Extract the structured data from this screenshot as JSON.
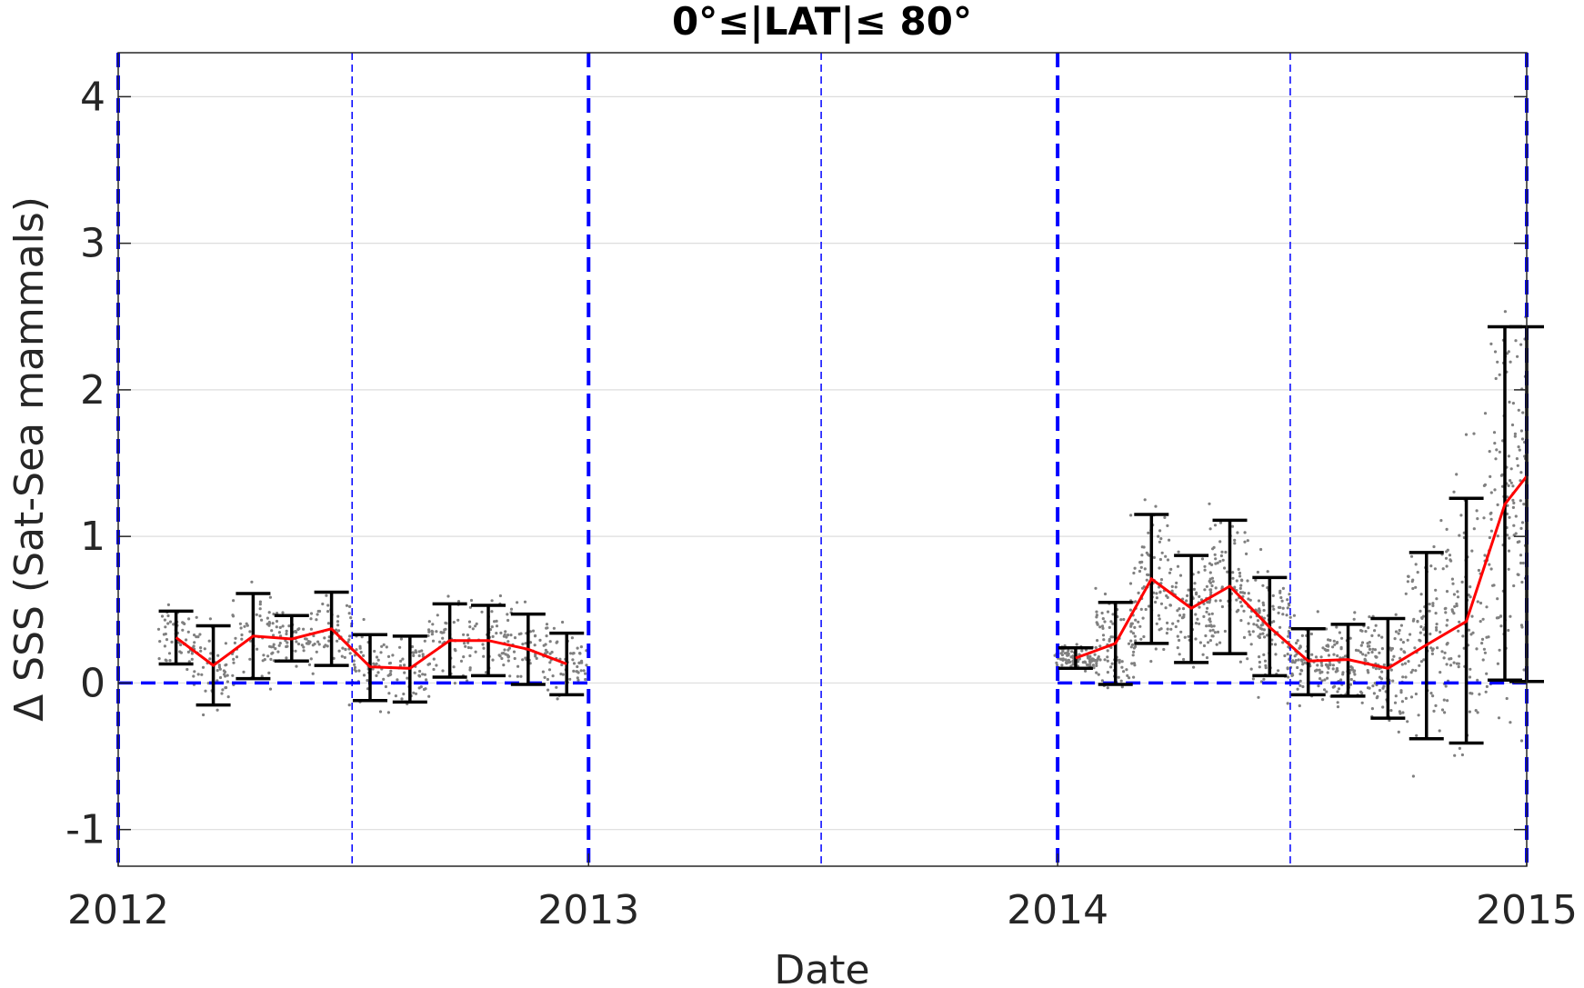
{
  "chart_data": {
    "type": "scatter",
    "title": "0°≤|LAT|≤ 80°",
    "xlabel": "Date",
    "ylabel": "Δ SSS (Sat-Sea mammals)",
    "xlim": [
      "2012-01-01",
      "2015-01-01"
    ],
    "ylim": [
      -1.25,
      4.3
    ],
    "x_ticks": [
      "2012",
      "2013",
      "2014",
      "2015"
    ],
    "y_ticks": [
      -1,
      0,
      1,
      2,
      3,
      4
    ],
    "y_tick_labels": [
      "-1",
      "0",
      "1",
      "2",
      "3",
      "4"
    ],
    "grid": "horizontal",
    "colors": {
      "mean_line": "#ff0000",
      "error_bar": "#000000",
      "points": "#808080",
      "reference": "#0000ff"
    },
    "reference_line": {
      "y": 0,
      "style": "dashed",
      "color": "#0000ff"
    },
    "vertical_markers": {
      "thick_dashed": [
        "2012-01-01",
        "2013-01-01",
        "2014-01-01",
        "2015-01-01"
      ],
      "thin_dashed": [
        "2012-07-01",
        "2013-07-01",
        "2014-07-01"
      ]
    },
    "series": [
      {
        "segment": "2012",
        "x": [
          "2012-02-15",
          "2012-03-15",
          "2012-04-15",
          "2012-05-15",
          "2012-06-15",
          "2012-07-15",
          "2012-08-15",
          "2012-09-15",
          "2012-10-15",
          "2012-11-15",
          "2012-12-15"
        ],
        "mean": [
          0.31,
          0.12,
          0.32,
          0.3,
          0.37,
          0.11,
          0.1,
          0.29,
          0.29,
          0.23,
          0.13
        ],
        "lower": [
          0.13,
          -0.15,
          0.03,
          0.15,
          0.12,
          -0.12,
          -0.13,
          0.04,
          0.05,
          -0.01,
          -0.08
        ],
        "upper": [
          0.49,
          0.39,
          0.61,
          0.46,
          0.62,
          0.33,
          0.32,
          0.54,
          0.53,
          0.47,
          0.34
        ]
      },
      {
        "segment": "2014",
        "x": [
          "2014-01-15",
          "2014-02-15",
          "2014-03-15",
          "2014-04-15",
          "2014-05-15",
          "2014-06-15",
          "2014-07-15",
          "2014-08-15",
          "2014-09-15",
          "2014-10-15",
          "2014-11-15",
          "2014-12-15",
          "2015-01-01"
        ],
        "mean": [
          0.17,
          0.27,
          0.71,
          0.51,
          0.66,
          0.38,
          0.15,
          0.16,
          0.1,
          0.26,
          0.42,
          1.22,
          1.41
        ],
        "lower": [
          0.1,
          -0.01,
          0.27,
          0.14,
          0.2,
          0.05,
          -0.08,
          -0.09,
          -0.24,
          -0.38,
          -0.41,
          0.02,
          0.01
        ],
        "upper": [
          0.24,
          0.55,
          1.15,
          0.87,
          1.11,
          0.72,
          0.37,
          0.4,
          0.44,
          0.89,
          1.26,
          2.43,
          2.43
        ]
      }
    ]
  }
}
